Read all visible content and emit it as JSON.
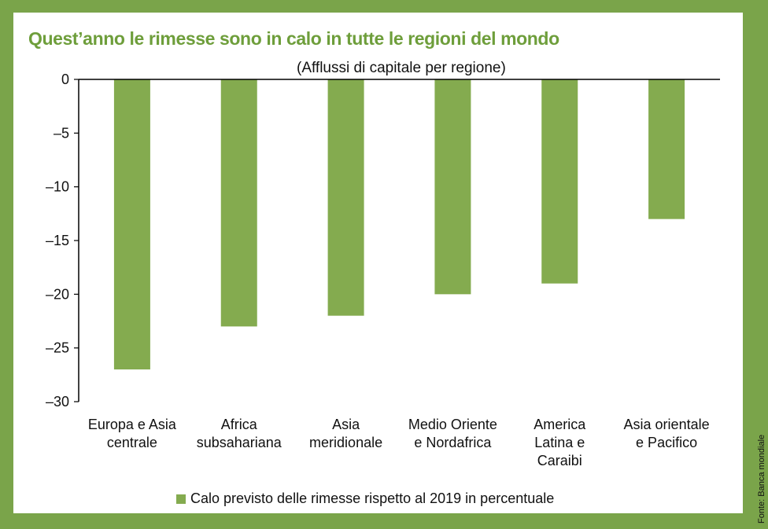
{
  "title": "Quest’anno le rimesse sono in calo in tutte le regioni del mondo",
  "subtitle": "(Afflussi di capitale per regione)",
  "source": "Fonte: Banca mondiale",
  "colors": {
    "frame": "#7aa44a",
    "bar": "#84ab4f",
    "title": "#6e9e3b"
  },
  "chart_data": {
    "type": "bar",
    "categories": [
      "Europa e Asia centrale",
      "Africa subsahariana",
      "Asia meridionale",
      "Medio Oriente e Nordafrica",
      "America Latina e Caraibi",
      "Asia orientale e Pacifico"
    ],
    "category_lines": [
      [
        "Europa e Asia",
        "centrale"
      ],
      [
        "Africa",
        "subsahariana"
      ],
      [
        "Asia",
        "meridionale"
      ],
      [
        "Medio Oriente",
        "e Nordafrica"
      ],
      [
        "America",
        "Latina e",
        "Caraibi"
      ],
      [
        "Asia orientale",
        "e Pacifico"
      ]
    ],
    "series": [
      {
        "name": "Calo previsto delle rimesse rispetto al 2019 in percentuale",
        "values": [
          -27,
          -23,
          -22,
          -20,
          -19,
          -13
        ]
      }
    ],
    "yticks": [
      "0",
      "–5",
      "–10",
      "–15",
      "–20",
      "–25",
      "–30"
    ],
    "ytick_values": [
      0,
      -5,
      -10,
      -15,
      -20,
      -25,
      -30
    ],
    "ylim": [
      -30,
      0
    ],
    "legend_position": "bottom",
    "grid": false
  }
}
